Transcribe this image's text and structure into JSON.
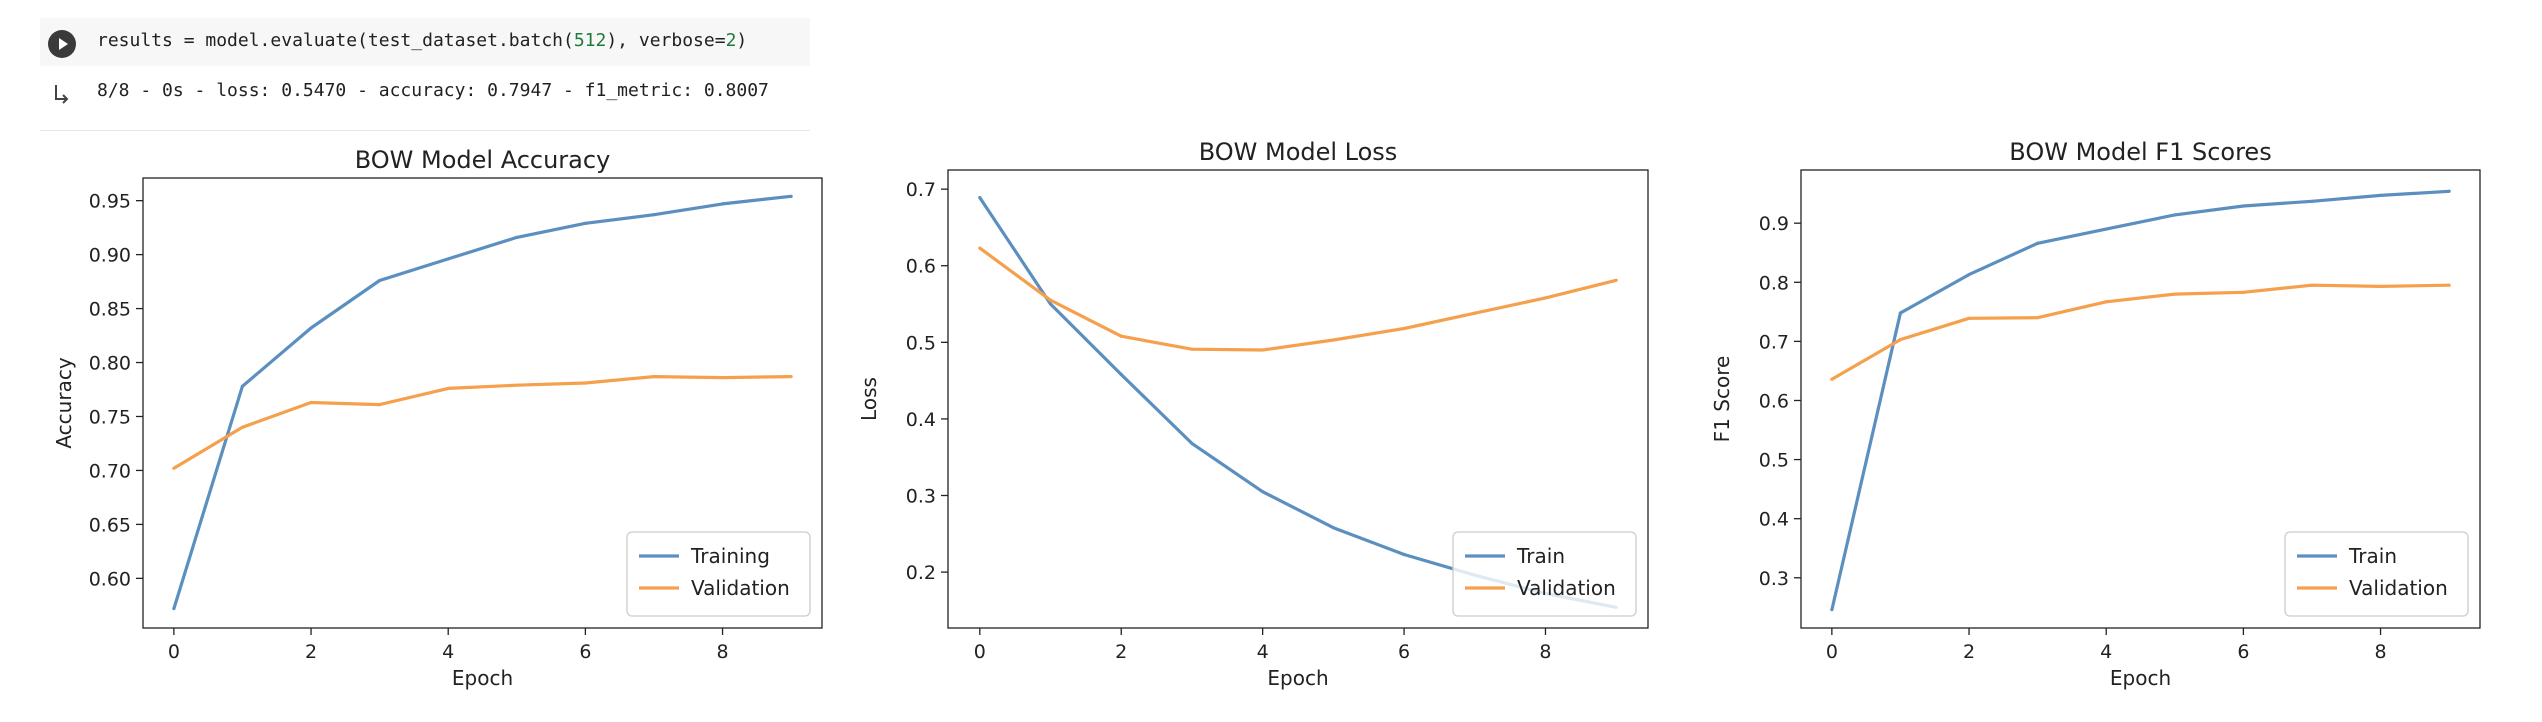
{
  "notebook": {
    "code_prefix": "results = model.evaluate(test_dataset.batch(",
    "code_number_1": "512",
    "code_middle": "), verbose=",
    "code_number_2": "2",
    "code_suffix": ")",
    "output_text": "8/8 - 0s - loss: 0.5470 - accuracy: 0.7947 - f1_metric: 0.8007"
  },
  "colors": {
    "series_1": "#5b8fbf",
    "series_2": "#f5a04c"
  },
  "chart_data": [
    {
      "type": "line",
      "title": "BOW Model Accuracy",
      "xlabel": "Epoch",
      "ylabel": "Accuracy",
      "x": [
        0,
        1,
        2,
        3,
        4,
        5,
        6,
        7,
        8,
        9
      ],
      "xticks": [
        0,
        2,
        4,
        6,
        8
      ],
      "yticks": [
        0.6,
        0.65,
        0.7,
        0.75,
        0.8,
        0.85,
        0.9,
        0.95
      ],
      "ytick_decimals": 2,
      "xlim": [
        -0.45,
        9.45
      ],
      "ylim": [
        0.554,
        0.971
      ],
      "legend_position": "lower right",
      "series": [
        {
          "name": "Training",
          "values": [
            0.572,
            0.778,
            0.832,
            0.876,
            0.896,
            0.916,
            0.929,
            0.937,
            0.947,
            0.954
          ]
        },
        {
          "name": "Validation",
          "values": [
            0.702,
            0.74,
            0.763,
            0.761,
            0.776,
            0.779,
            0.781,
            0.787,
            0.786,
            0.787
          ]
        }
      ]
    },
    {
      "type": "line",
      "title": "BOW Model Loss",
      "xlabel": "Epoch",
      "ylabel": "Loss",
      "x": [
        0,
        1,
        2,
        3,
        4,
        5,
        6,
        7,
        8,
        9
      ],
      "xticks": [
        0,
        2,
        4,
        6,
        8
      ],
      "yticks": [
        0.2,
        0.3,
        0.4,
        0.5,
        0.6,
        0.7
      ],
      "ytick_decimals": 1,
      "xlim": [
        -0.45,
        9.45
      ],
      "ylim": [
        0.127,
        0.725
      ],
      "legend_position": "lower right",
      "series": [
        {
          "name": "Train",
          "values": [
            0.689,
            0.55,
            0.458,
            0.368,
            0.305,
            0.258,
            0.223,
            0.196,
            0.172,
            0.154
          ]
        },
        {
          "name": "Validation",
          "values": [
            0.623,
            0.555,
            0.508,
            0.491,
            0.49,
            0.503,
            0.518,
            0.538,
            0.558,
            0.581
          ]
        }
      ]
    },
    {
      "type": "line",
      "title": "BOW Model F1 Scores",
      "xlabel": "Epoch",
      "ylabel": "F1 Score",
      "x": [
        0,
        1,
        2,
        3,
        4,
        5,
        6,
        7,
        8,
        9
      ],
      "xticks": [
        0,
        2,
        4,
        6,
        8
      ],
      "yticks": [
        0.3,
        0.4,
        0.5,
        0.6,
        0.7,
        0.8,
        0.9
      ],
      "ytick_decimals": 1,
      "xlim": [
        -0.45,
        9.45
      ],
      "ylim": [
        0.215,
        0.99
      ],
      "legend_position": "lower right",
      "series": [
        {
          "name": "Train",
          "values": [
            0.246,
            0.748,
            0.813,
            0.866,
            0.89,
            0.914,
            0.929,
            0.937,
            0.947,
            0.954
          ]
        },
        {
          "name": "Validation",
          "values": [
            0.636,
            0.703,
            0.739,
            0.74,
            0.767,
            0.78,
            0.783,
            0.795,
            0.793,
            0.795
          ]
        }
      ]
    }
  ]
}
